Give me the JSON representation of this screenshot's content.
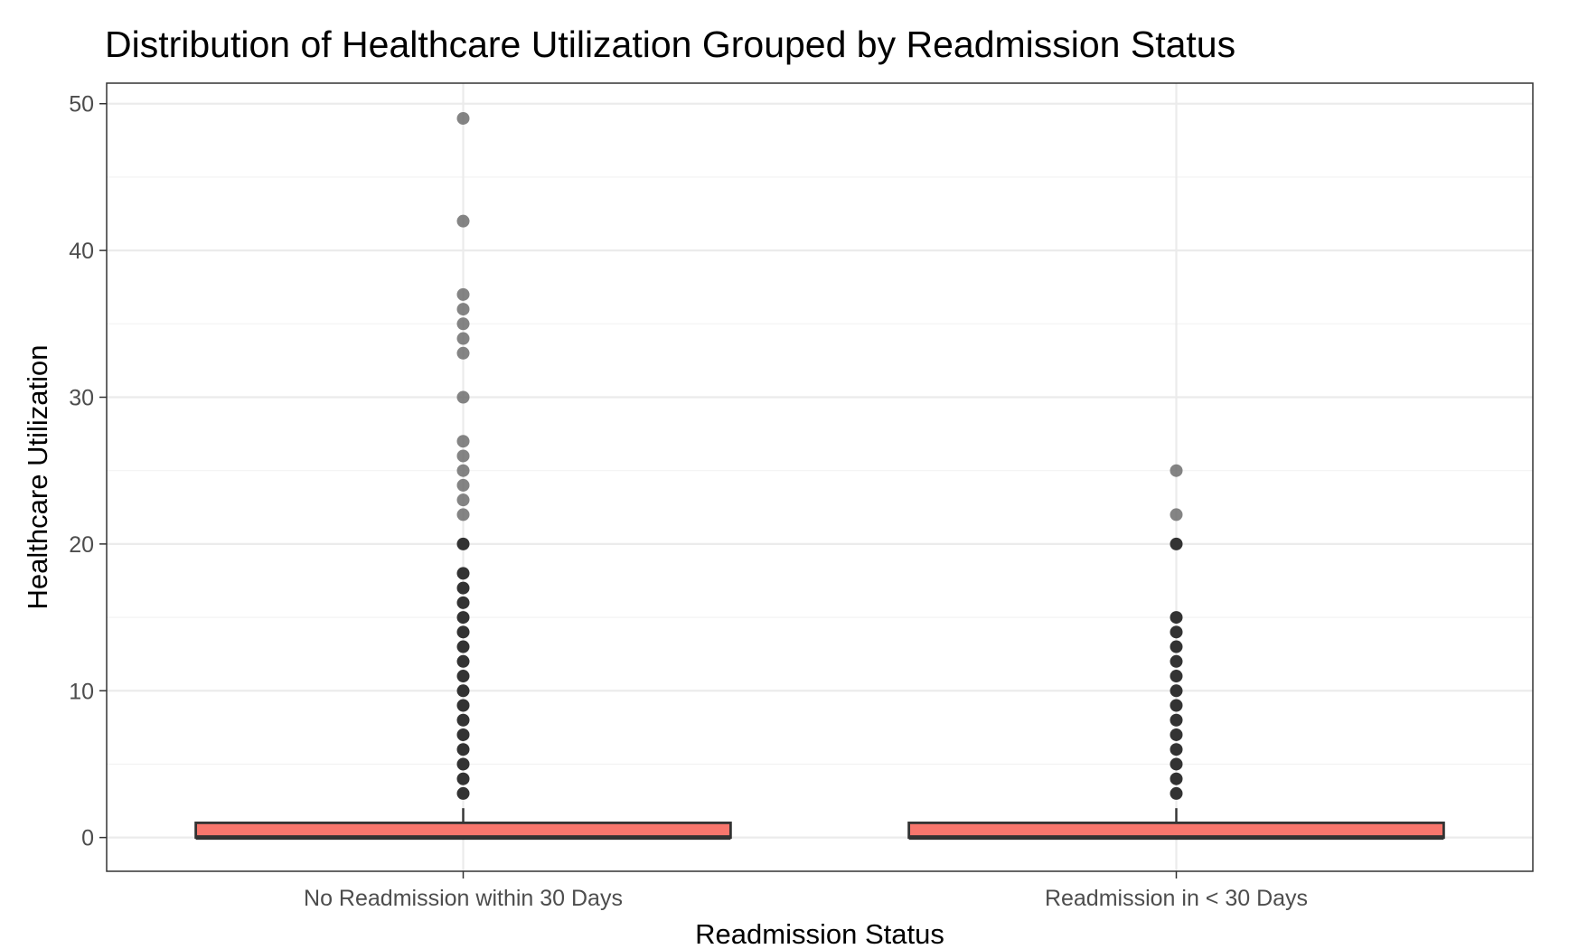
{
  "chart_data": {
    "type": "box",
    "title": "Distribution of Healthcare Utilization Grouped by Readmission Status",
    "xlabel": "Readmission Status",
    "ylabel": "Healthcare Utilization",
    "categories": [
      "No Readmission within 30 Days",
      "Readmission in < 30 Days"
    ],
    "ylim": [
      -2.3,
      51.4
    ],
    "yticks": [
      0,
      10,
      20,
      30,
      40,
      50
    ],
    "grid": true,
    "legend": "none",
    "box_color": "#F8766D",
    "series": [
      {
        "category": "No Readmission within 30 Days",
        "min": 0,
        "q1": 0,
        "median": 0,
        "q3": 1,
        "max": 2,
        "outliers": [
          3,
          4,
          5,
          6,
          7,
          8,
          9,
          10,
          11,
          12,
          13,
          14,
          15,
          16,
          17,
          18,
          20,
          22,
          23,
          24,
          25,
          26,
          27,
          30,
          33,
          34,
          35,
          36,
          37,
          42,
          49
        ]
      },
      {
        "category": "Readmission in < 30 Days",
        "min": 0,
        "q1": 0,
        "median": 0,
        "q3": 1,
        "max": 2,
        "outliers": [
          3,
          4,
          5,
          6,
          7,
          8,
          9,
          10,
          11,
          12,
          13,
          14,
          15,
          20,
          22,
          25
        ]
      }
    ]
  }
}
